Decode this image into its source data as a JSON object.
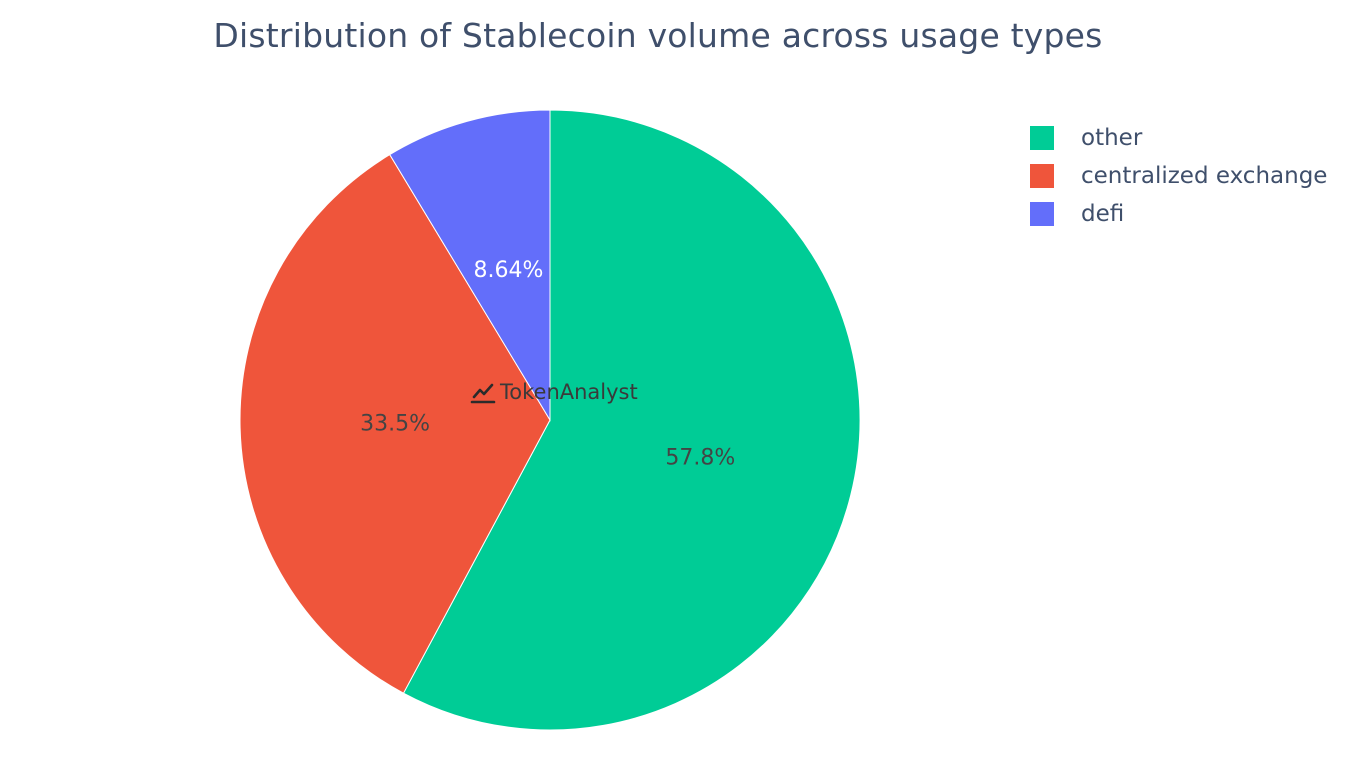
{
  "chart_data": {
    "type": "pie",
    "title": "Distribution of Stablecoin volume across usage types",
    "slices": [
      {
        "label": "other",
        "value": 57.8,
        "text": "57.8%",
        "color": "#00cc96",
        "text_color": "#444444"
      },
      {
        "label": "centralized exchange",
        "value": 33.5,
        "text": "33.5%",
        "color": "#ef553b",
        "text_color": "#444444"
      },
      {
        "label": "defi",
        "value": 8.64,
        "text": "8.64%",
        "color": "#636efa",
        "text_color": "#ffffff"
      }
    ],
    "legend_placement": "top-right",
    "direction": "clockwise",
    "start": "top"
  },
  "watermark": {
    "text": "TokenAnalyst",
    "icon": "chart-trend-icon"
  }
}
